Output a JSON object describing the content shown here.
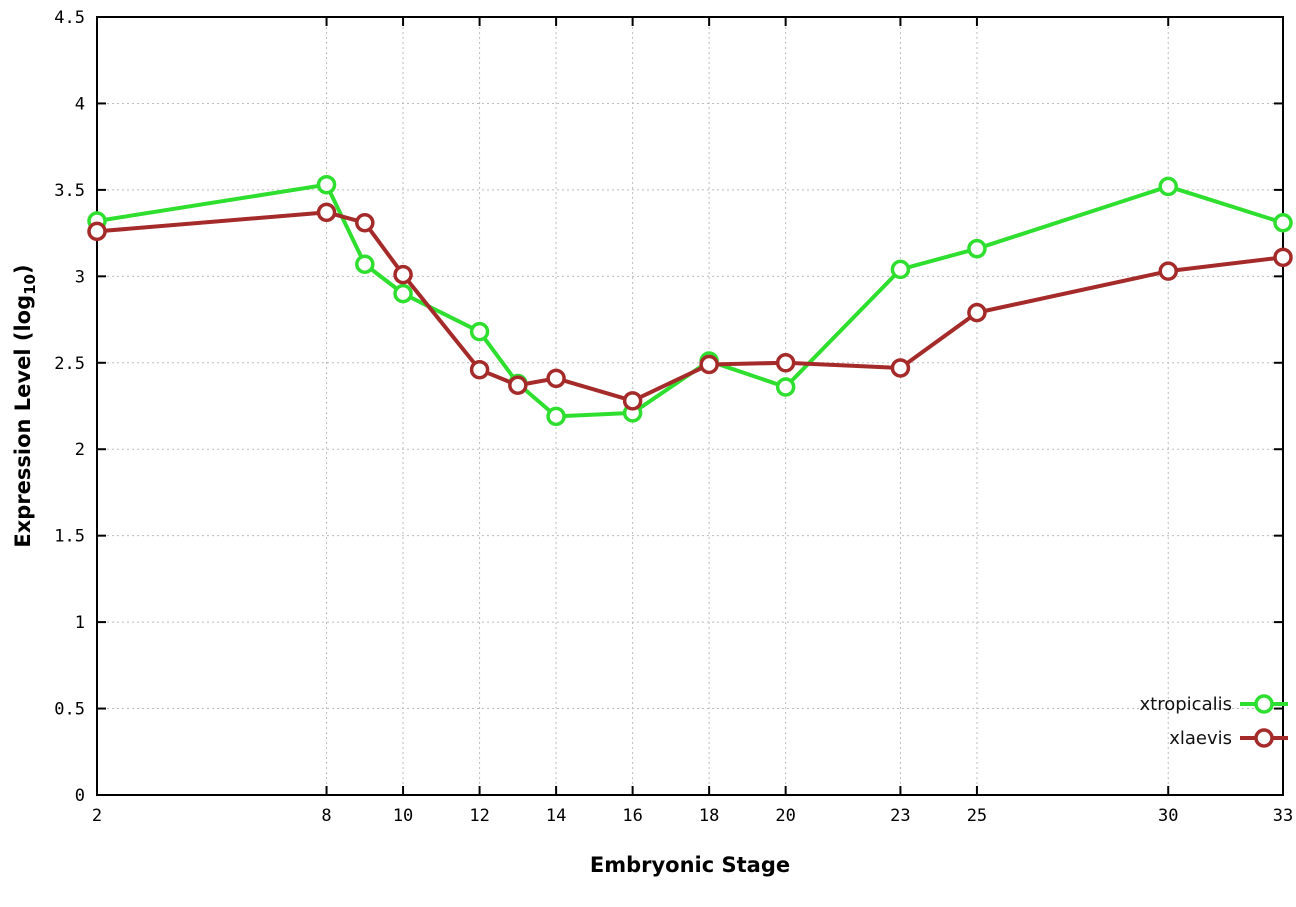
{
  "labels": {
    "y_pre": "Expression Level (log",
    "y_sub": "10",
    "y_post": ")"
  },
  "chart_data": {
    "type": "line",
    "title": "",
    "xlabel": "Embryonic Stage",
    "ylabel": "Expression Level (log10)",
    "xlim": [
      2,
      33
    ],
    "ylim": [
      0,
      4.5
    ],
    "grid": true,
    "legend_position": "bottom-right",
    "x_ticks": [
      2,
      8,
      10,
      12,
      14,
      16,
      18,
      20,
      23,
      25,
      30,
      33
    ],
    "y_ticks": [
      0,
      0.5,
      1,
      1.5,
      2,
      2.5,
      3,
      3.5,
      4,
      4.5
    ],
    "y_tick_labels": [
      "0",
      "0.5",
      "1",
      "1.5",
      "2",
      "2.5",
      "3",
      "3.5",
      "4",
      "4.5"
    ],
    "x": [
      2,
      8,
      9,
      10,
      12,
      13,
      14,
      16,
      18,
      20,
      23,
      25,
      30,
      33
    ],
    "series": [
      {
        "name": "xtropicalis",
        "color": "#2fdf2f",
        "marker": "circle-open",
        "values": [
          3.32,
          3.53,
          3.07,
          2.9,
          2.68,
          2.38,
          2.19,
          2.21,
          2.51,
          2.36,
          3.04,
          3.16,
          3.52,
          3.31
        ]
      },
      {
        "name": "xlaevis",
        "color": "#a52a2a",
        "marker": "circle-open",
        "values": [
          3.26,
          3.37,
          3.31,
          3.01,
          2.46,
          2.37,
          2.41,
          2.28,
          2.49,
          2.5,
          2.47,
          2.79,
          3.03,
          3.11
        ]
      }
    ]
  }
}
